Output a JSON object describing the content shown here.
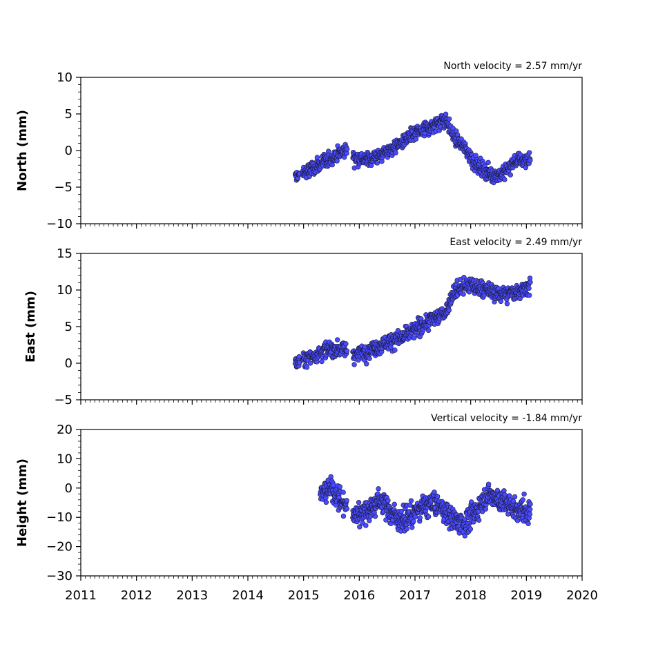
{
  "chart_data": [
    {
      "type": "scatter",
      "title": "North velocity = 2.57 mm/yr",
      "xlabel": "",
      "ylabel": "North (mm)",
      "xlim": [
        2011,
        2020
      ],
      "ylim": [
        -10,
        10
      ],
      "yticks": [
        -10,
        -5,
        0,
        5,
        10
      ],
      "y_tick_labels": [
        "−10",
        "−5",
        "0",
        "5",
        "10"
      ],
      "x_tick_labels": [],
      "series": [
        {
          "color": "#4a4aff",
          "trend_points": [
            [
              2014.85,
              -3.6
            ],
            [
              2015.0,
              -3.1
            ],
            [
              2015.3,
              -1.9
            ],
            [
              2015.6,
              -0.5
            ],
            [
              2015.8,
              0.2
            ],
            [
              2015.9,
              -0.8
            ],
            [
              2016.1,
              -1.3
            ],
            [
              2016.4,
              -0.6
            ],
            [
              2016.7,
              0.8
            ],
            [
              2017.0,
              2.3
            ],
            [
              2017.3,
              3.3
            ],
            [
              2017.55,
              4.3
            ],
            [
              2017.7,
              1.8
            ],
            [
              2017.9,
              0.3
            ],
            [
              2018.1,
              -1.9
            ],
            [
              2018.4,
              -3.4
            ],
            [
              2018.6,
              -3.1
            ],
            [
              2018.8,
              -1.4
            ],
            [
              2019.07,
              -1.2
            ]
          ],
          "noise": 1.3,
          "n_points": 760
        }
      ]
    },
    {
      "type": "scatter",
      "title": "East velocity = 2.49 mm/yr",
      "xlabel": "",
      "ylabel": "East (mm)",
      "xlim": [
        2011,
        2020
      ],
      "ylim": [
        -5,
        15
      ],
      "yticks": [
        -5,
        0,
        5,
        10,
        15
      ],
      "y_tick_labels": [
        "−5",
        "0",
        "5",
        "10",
        "15"
      ],
      "x_tick_labels": [],
      "series": [
        {
          "color": "#4a4aff",
          "trend_points": [
            [
              2014.85,
              0.0
            ],
            [
              2015.1,
              0.8
            ],
            [
              2015.4,
              1.9
            ],
            [
              2015.7,
              2.0
            ],
            [
              2015.9,
              1.2
            ],
            [
              2016.2,
              1.8
            ],
            [
              2016.5,
              2.9
            ],
            [
              2016.8,
              3.6
            ],
            [
              2017.0,
              4.6
            ],
            [
              2017.3,
              6.0
            ],
            [
              2017.55,
              7.0
            ],
            [
              2017.7,
              9.8
            ],
            [
              2017.9,
              10.6
            ],
            [
              2018.2,
              10.3
            ],
            [
              2018.5,
              9.4
            ],
            [
              2018.8,
              9.7
            ],
            [
              2019.07,
              10.6
            ]
          ],
          "noise": 1.4,
          "n_points": 760
        }
      ]
    },
    {
      "type": "scatter",
      "title": "Vertical velocity = -1.84 mm/yr",
      "xlabel": "",
      "ylabel": "Height (mm)",
      "xlim": [
        2011,
        2020
      ],
      "ylim": [
        -30,
        20
      ],
      "yticks": [
        -30,
        -20,
        -10,
        0,
        10,
        20
      ],
      "y_tick_labels": [
        "−30",
        "−20",
        "−10",
        "0",
        "10",
        "20"
      ],
      "x_tick_labels": [
        "2011",
        "2012",
        "2013",
        "2014",
        "2015",
        "2016",
        "2017",
        "2018",
        "2019",
        "2020"
      ],
      "series": [
        {
          "color": "#4a4aff",
          "trend_points": [
            [
              2015.3,
              -2.0
            ],
            [
              2015.5,
              0.0
            ],
            [
              2015.7,
              -5.0
            ],
            [
              2015.9,
              -9.0
            ],
            [
              2016.1,
              -8.0
            ],
            [
              2016.4,
              -4.0
            ],
            [
              2016.6,
              -9.0
            ],
            [
              2016.8,
              -11.0
            ],
            [
              2017.0,
              -8.0
            ],
            [
              2017.3,
              -5.0
            ],
            [
              2017.5,
              -7.0
            ],
            [
              2017.7,
              -11.0
            ],
            [
              2017.9,
              -12.0
            ],
            [
              2018.1,
              -8.0
            ],
            [
              2018.3,
              -2.0
            ],
            [
              2018.5,
              -4.0
            ],
            [
              2018.8,
              -7.0
            ],
            [
              2019.07,
              -8.0
            ]
          ],
          "noise": 5.0,
          "n_points": 760
        }
      ]
    }
  ]
}
